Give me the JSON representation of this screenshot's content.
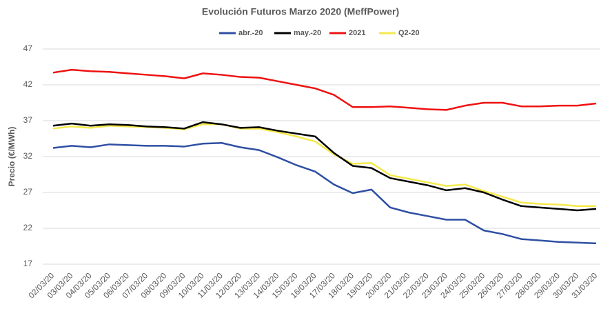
{
  "chart_data": {
    "type": "line",
    "title": "Evolución Futuros Marzo 2020 (MeffPower)",
    "y_label": "Precio (€/MWh)",
    "categories": [
      "02/03/20",
      "03/03/20",
      "04/03/20",
      "05/03/20",
      "06/03/20",
      "07/03/20",
      "08/03/20",
      "09/03/20",
      "10/03/20",
      "11/03/20",
      "12/03/20",
      "13/03/20",
      "14/03/20",
      "15/03/20",
      "16/03/20",
      "17/03/20",
      "18/03/20",
      "19/03/20",
      "20/03/20",
      "21/03/20",
      "22/03/20",
      "23/03/20",
      "24/03/20",
      "25/03/20",
      "26/03/20",
      "27/03/20",
      "28/03/20",
      "29/03/20",
      "30/03/20",
      "31/03/20"
    ],
    "series": [
      {
        "name": "abr.-20",
        "color": "#2e4fa3",
        "values": [
          33.2,
          33.5,
          33.3,
          33.7,
          33.6,
          33.5,
          33.5,
          33.4,
          33.8,
          33.9,
          33.3,
          32.9,
          31.9,
          30.8,
          29.9,
          28.1,
          26.9,
          27.4,
          24.9,
          24.2,
          23.7,
          23.2,
          23.2,
          21.7,
          21.2,
          20.5,
          20.3,
          20.1,
          20.0,
          19.9
        ]
      },
      {
        "name": "may.-20",
        "color": "#000000",
        "values": [
          36.3,
          36.6,
          36.3,
          36.5,
          36.4,
          36.2,
          36.1,
          35.9,
          36.8,
          36.5,
          36.0,
          36.1,
          35.6,
          35.2,
          34.8,
          32.5,
          30.7,
          30.4,
          29.0,
          28.5,
          28.0,
          27.3,
          27.6,
          27.0,
          26.0,
          25.1,
          24.9,
          24.7,
          24.5,
          24.7
        ]
      },
      {
        "name": "2021",
        "color": "#ee1111",
        "values": [
          43.7,
          44.1,
          43.9,
          43.8,
          43.6,
          43.4,
          43.2,
          42.9,
          43.6,
          43.4,
          43.1,
          43.0,
          42.5,
          42.0,
          41.5,
          40.6,
          38.9,
          38.9,
          39.0,
          38.8,
          38.6,
          38.5,
          39.1,
          39.5,
          39.5,
          39.0,
          39.0,
          39.1,
          39.1,
          39.4
        ]
      },
      {
        "name": "Q2-20",
        "color": "#f5e94b",
        "values": [
          35.9,
          36.2,
          36.0,
          36.3,
          36.2,
          36.1,
          36.0,
          35.8,
          36.5,
          36.5,
          35.9,
          35.9,
          35.4,
          34.8,
          34.1,
          32.3,
          31.0,
          31.1,
          29.4,
          28.9,
          28.4,
          27.9,
          28.1,
          27.2,
          26.4,
          25.6,
          25.4,
          25.3,
          25.1,
          25.1
        ]
      }
    ],
    "ylim": [
      17,
      47
    ],
    "yticks": [
      17,
      22,
      27,
      32,
      37,
      42,
      47
    ],
    "grid": true,
    "legend": "top"
  }
}
